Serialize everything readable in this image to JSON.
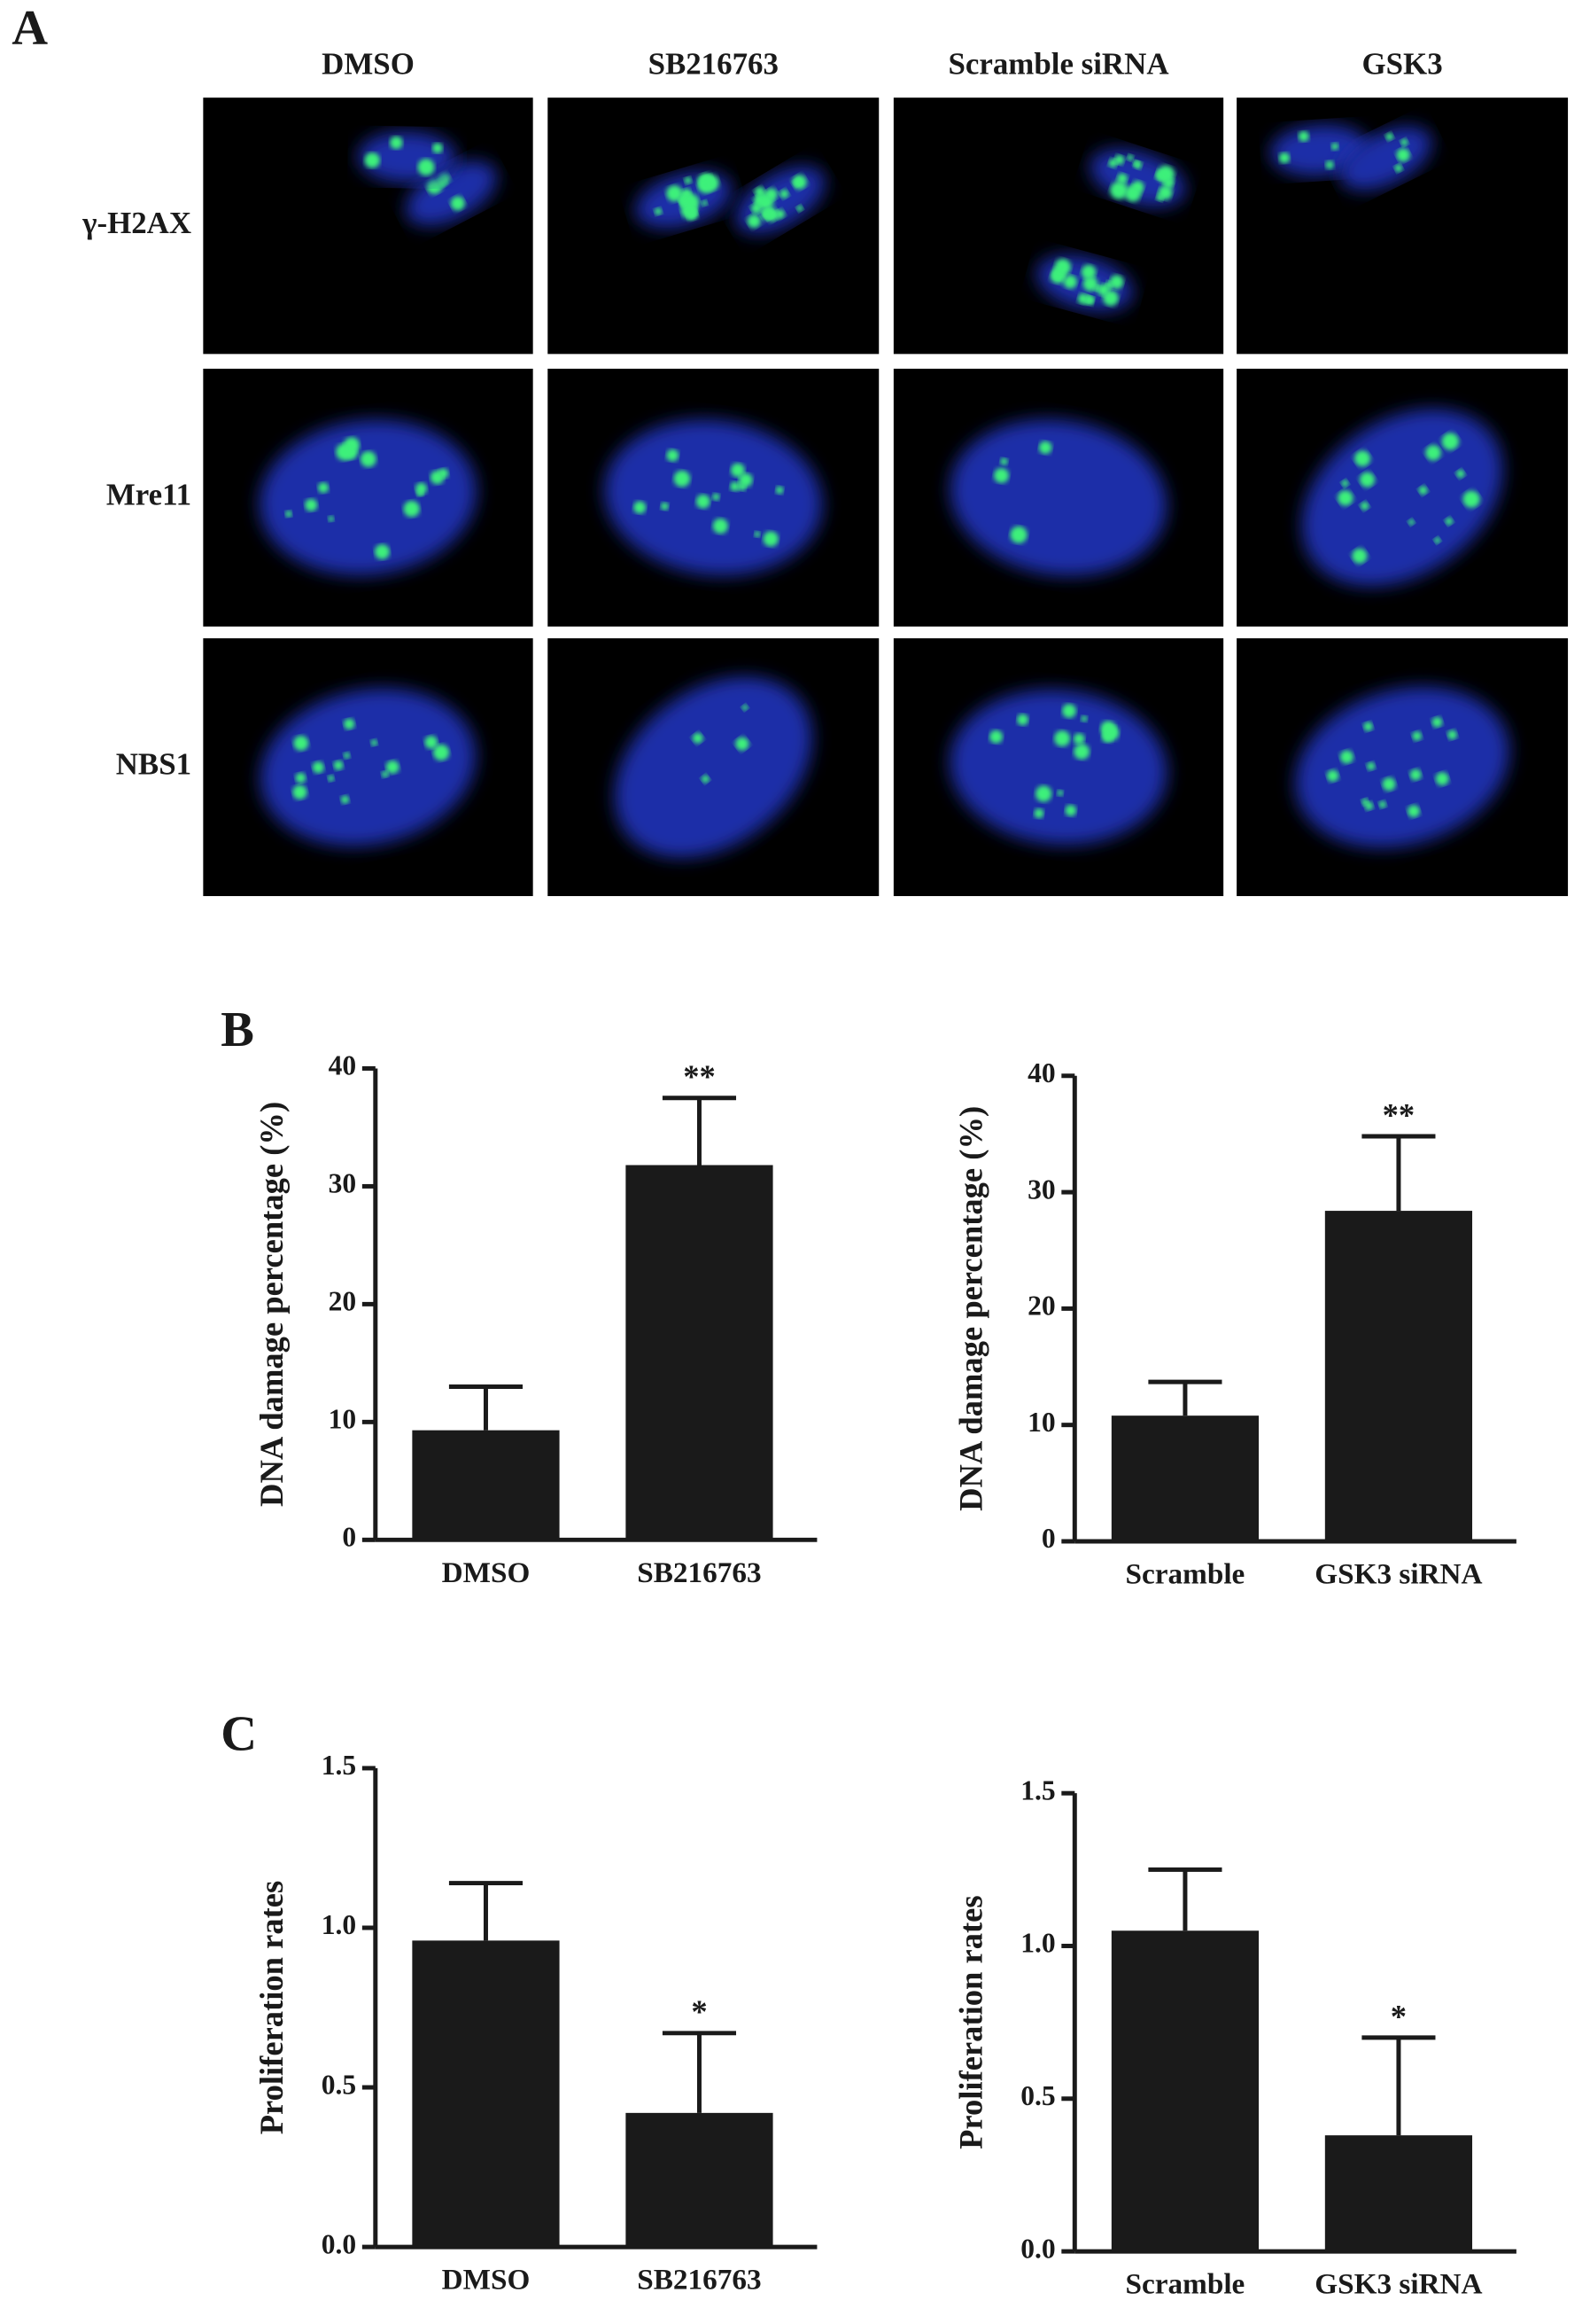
{
  "panel_labels": [
    "A",
    "B",
    "C"
  ],
  "panel_a": {
    "columns": [
      "DMSO",
      "SB216763",
      "Scramble siRNA",
      "GSK3"
    ],
    "rows": [
      "γ-H2AX",
      "Mre11",
      "NBS1"
    ]
  },
  "chart_data": [
    {
      "type": "bar",
      "ylabel": "DNA damage percentage (%)",
      "categories": [
        "DMSO",
        "SB216763"
      ],
      "values": [
        9.3,
        31.8
      ],
      "errors": [
        3.7,
        5.7
      ],
      "significance": [
        null,
        "**"
      ],
      "color": "#1a1a1a",
      "ylim": [
        0,
        40
      ],
      "yticks": [
        0,
        10,
        20,
        30,
        40
      ]
    },
    {
      "type": "bar",
      "ylabel": "DNA damage percentage (%)",
      "categories": [
        "Scramble",
        "GSK3 siRNA"
      ],
      "values": [
        10.8,
        28.4
      ],
      "errors": [
        2.9,
        6.4
      ],
      "significance": [
        null,
        "**"
      ],
      "color": "#1a1a1a",
      "ylim": [
        0,
        40
      ],
      "yticks": [
        0,
        10,
        20,
        30,
        40
      ]
    },
    {
      "type": "bar",
      "ylabel": "Proliferation rates",
      "categories": [
        "DMSO",
        "SB216763"
      ],
      "values": [
        0.96,
        0.42
      ],
      "errors": [
        0.18,
        0.25
      ],
      "significance": [
        null,
        "*"
      ],
      "color": "#1a1a1a",
      "ylim": [
        0,
        1.5
      ],
      "yticks": [
        {
          "value": 0,
          "label": "0.0"
        },
        0.5,
        {
          "value": 1,
          "label": "1.0"
        },
        1.5
      ]
    },
    {
      "type": "bar",
      "ylabel": "Proliferation rates",
      "categories": [
        "Scramble",
        "GSK3 siRNA"
      ],
      "values": [
        1.05,
        0.38
      ],
      "errors": [
        0.2,
        0.32
      ],
      "significance": [
        null,
        "*"
      ],
      "color": "#1a1a1a",
      "ylim": [
        0,
        1.5
      ],
      "yticks": [
        {
          "value": 0,
          "label": "0.0"
        },
        0.5,
        {
          "value": 1,
          "label": "1.0"
        },
        1.5
      ]
    }
  ]
}
